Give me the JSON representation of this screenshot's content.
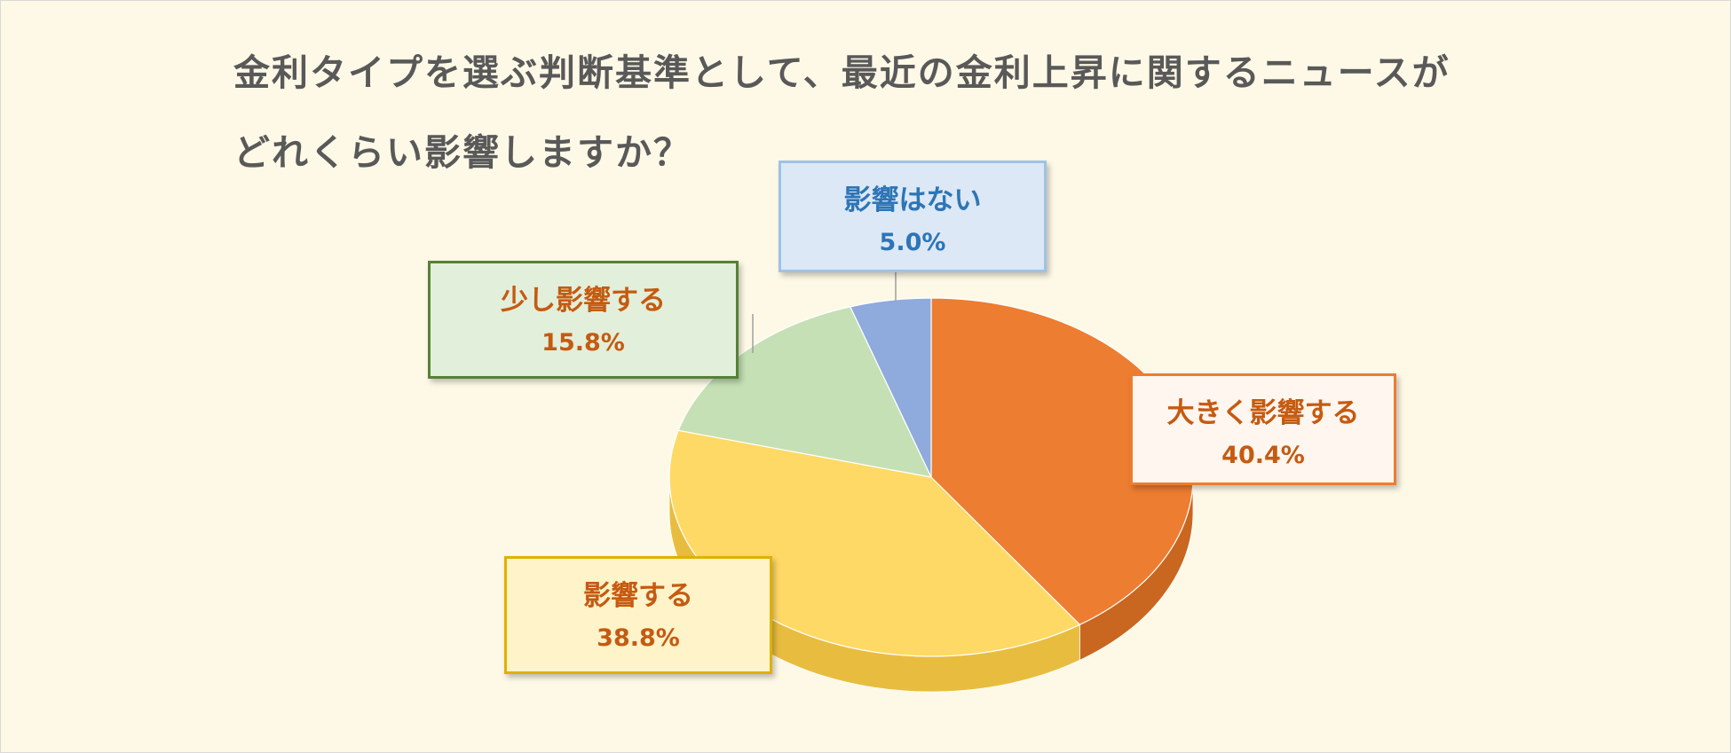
{
  "chart_data": {
    "type": "pie",
    "title_lines": [
      "金利タイプを選ぶ判断基準として、最近の金利上昇に関するニュースが",
      "どれくらい影響しますか？"
    ],
    "unit": "%",
    "start_angle_deg": 0,
    "direction": "clockwise",
    "slices": [
      {
        "label": "大きく影響する",
        "value": 40.4,
        "display": "40.4%",
        "color": "#ed7d31",
        "side_color": "#c9661f"
      },
      {
        "label": "影響する",
        "value": 38.8,
        "display": "38.8%",
        "color": "#ffd966",
        "side_color": "#e8bd3f"
      },
      {
        "label": "少し影響する",
        "value": 15.8,
        "display": "15.8%",
        "color": "#c5e0b4",
        "side_color": "#a9c894"
      },
      {
        "label": "影響はない",
        "value": 5.0,
        "display": "5.0%",
        "color": "#8faadc",
        "side_color": "#6f8cc2"
      }
    ],
    "legend": "none",
    "data_labels": "callout"
  }
}
